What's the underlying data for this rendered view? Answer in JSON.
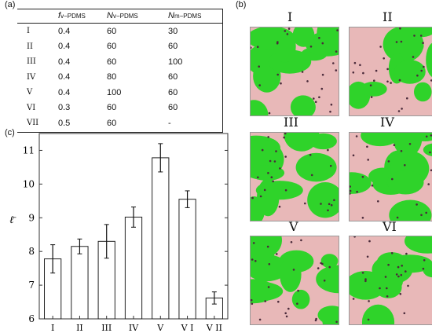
{
  "panel_a": {
    "label": "(a)",
    "headers": [
      {
        "main": "f",
        "sub": "v−PDMS"
      },
      {
        "main": "N",
        "sub": "v−PDMS"
      },
      {
        "main": "N",
        "sub": "m−PDMS"
      }
    ],
    "rows": [
      {
        "id": "I",
        "f": "0.4",
        "nv": "60",
        "nm": "30"
      },
      {
        "id": "II",
        "f": "0.4",
        "nv": "60",
        "nm": "60"
      },
      {
        "id": "III",
        "f": "0.4",
        "nv": "60",
        "nm": "100"
      },
      {
        "id": "IV",
        "f": "0.4",
        "nv": "80",
        "nm": "60"
      },
      {
        "id": "V",
        "f": "0.4",
        "nv": "100",
        "nm": "60"
      },
      {
        "id": "VI",
        "f": "0.3",
        "nv": "60",
        "nm": "60"
      },
      {
        "id": "VII",
        "f": "0.5",
        "nv": "60",
        "nm": "-"
      }
    ]
  },
  "panel_b": {
    "label": "(b)",
    "snapshots": [
      "I",
      "II",
      "III",
      "IV",
      "V",
      "VI"
    ],
    "colors": {
      "green": "#2fd32a",
      "pink": "#e8b8b8",
      "dark": "#4a2a3a"
    }
  },
  "panel_c": {
    "label": "(c)",
    "chart_data": {
      "type": "bar",
      "ylabel": "ℓ̄",
      "categories": [
        "I",
        "II",
        "III",
        "IV",
        "V",
        "VI",
        "VII"
      ],
      "values": [
        7.78,
        8.15,
        8.3,
        9.02,
        10.78,
        9.55,
        6.62
      ],
      "errors": [
        0.42,
        0.22,
        0.5,
        0.3,
        0.42,
        0.25,
        0.18
      ],
      "ylim": [
        6,
        11.5
      ],
      "yticks": [
        "6",
        "7",
        "8",
        "9",
        "10",
        "11"
      ],
      "xtick_labels": [
        "I",
        "II",
        "III",
        "IV",
        "V",
        "V I",
        "V II"
      ]
    }
  }
}
